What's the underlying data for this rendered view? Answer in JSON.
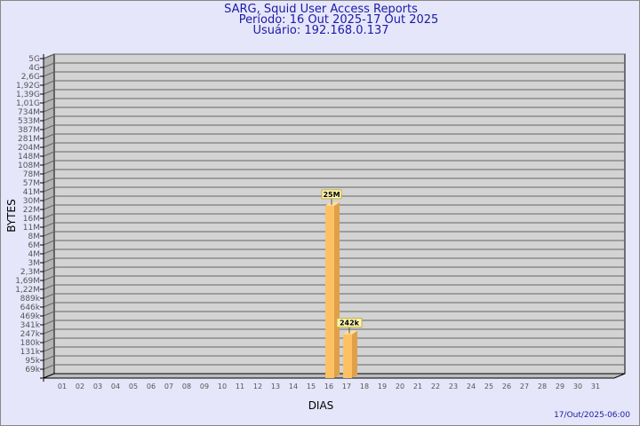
{
  "header": {
    "title": "SARG, Squid User Access Reports",
    "period": "Período: 16 Out 2025-17 Out 2025",
    "user": "Usuário: 192.168.0.137"
  },
  "footer": "17/Out/2025-06:00",
  "chart_data": {
    "type": "bar",
    "xlabel": "DIAS",
    "ylabel": "BYTES",
    "y_ticks": [
      "5G",
      "4G",
      "2,6G",
      "1,92G",
      "1,39G",
      "1,01G",
      "734M",
      "533M",
      "387M",
      "281M",
      "204M",
      "148M",
      "108M",
      "78M",
      "57M",
      "41M",
      "30M",
      "22M",
      "16M",
      "11M",
      "8M",
      "6M",
      "4M",
      "3M",
      "2,3M",
      "1,69M",
      "1,22M",
      "889k",
      "646k",
      "469k",
      "341k",
      "247k",
      "180k",
      "131k",
      "95k",
      "69k"
    ],
    "categories": [
      "01",
      "02",
      "03",
      "04",
      "05",
      "06",
      "07",
      "08",
      "09",
      "10",
      "11",
      "12",
      "13",
      "14",
      "15",
      "16",
      "17",
      "18",
      "19",
      "20",
      "21",
      "22",
      "23",
      "24",
      "25",
      "26",
      "27",
      "28",
      "29",
      "30",
      "31"
    ],
    "values": [
      null,
      null,
      null,
      null,
      null,
      null,
      null,
      null,
      null,
      null,
      null,
      null,
      null,
      null,
      null,
      25000000,
      242000,
      null,
      null,
      null,
      null,
      null,
      null,
      null,
      null,
      null,
      null,
      null,
      null,
      null,
      null
    ],
    "data_labels": {
      "16": "25M",
      "17": "242k"
    },
    "grid": true,
    "colors": {
      "bar": "#fdc163",
      "bar_side": "#e0a04a",
      "bar_top": "#ffe09a",
      "plot_bg": "#d3d3d3",
      "title": "#1a1aa6"
    }
  }
}
